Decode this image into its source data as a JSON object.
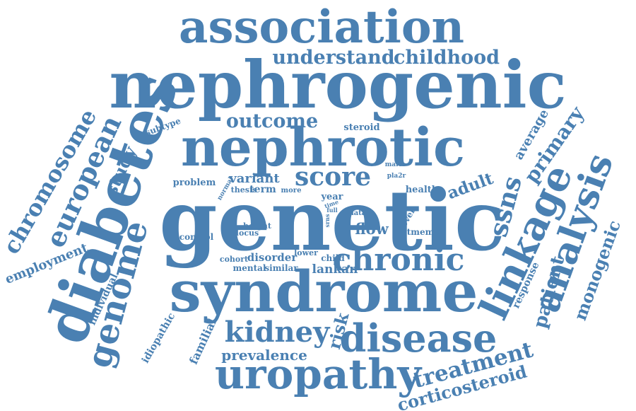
{
  "color": "#4a80b2",
  "words": [
    "association",
    "understand",
    "childhood",
    "nephrogenic",
    "nephrotic",
    "genetic",
    "syndrome",
    "diabetes",
    "genome",
    "european",
    "chromosome",
    "study",
    "subtype",
    "outcome",
    "steroid",
    "score",
    "variant",
    "problem",
    "normal",
    "thesis",
    "term",
    "more",
    "male",
    "pla2r",
    "year",
    "time",
    "full",
    "health",
    "data",
    "srns",
    "adult",
    "novel",
    "tmem",
    "linkage",
    "analysis",
    "ssns",
    "primary",
    "average",
    "patient",
    "monogenic",
    "response",
    "height",
    "locus",
    "control",
    "flow",
    "cohort",
    "disorder",
    "lower",
    "child",
    "mental",
    "similar",
    "lankan",
    "chronic",
    "risk",
    "kidney",
    "disease",
    "uropathy",
    "treatment",
    "corticosteroid",
    "prevalence",
    "familial",
    "idiopathic",
    "individual",
    "employment"
  ]
}
